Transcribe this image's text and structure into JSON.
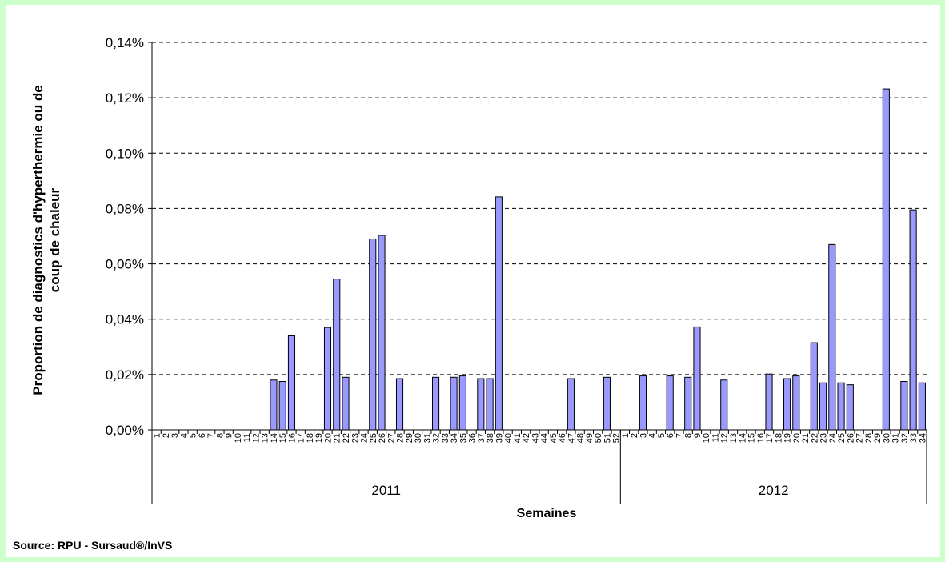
{
  "source": "Source: RPU - Sursaud®/InVS",
  "chart_data": {
    "type": "bar",
    "ylabel": "Proportion de diagnostics d'hyperthermie ou de coup de chaleur",
    "xlabel": "Semaines",
    "ylim": [
      0,
      0.14
    ],
    "yticks": [
      "0,00%",
      "0,02%",
      "0,04%",
      "0,06%",
      "0,08%",
      "0,10%",
      "0,12%",
      "0,14%"
    ],
    "grid": "horizontal-dashed",
    "colors": {
      "bar_fill": "#9999ff",
      "bar_stroke": "#000000",
      "grid": "#000000",
      "background": "#ffffff"
    },
    "groups": [
      {
        "year": "2011",
        "weeks": [
          "1",
          "2",
          "3",
          "4",
          "5",
          "6",
          "7",
          "8",
          "9",
          "10",
          "11",
          "12",
          "13",
          "14",
          "15",
          "16",
          "17",
          "18",
          "19",
          "20",
          "21",
          "22",
          "23",
          "24",
          "25",
          "26",
          "27",
          "28",
          "29",
          "30",
          "31",
          "32",
          "33",
          "34",
          "35",
          "36",
          "37",
          "38",
          "39",
          "40",
          "41",
          "42",
          "43",
          "44",
          "45",
          "46",
          "47",
          "48",
          "49",
          "50",
          "51",
          "52"
        ],
        "values": [
          0,
          0,
          0,
          0,
          0,
          0,
          0,
          0,
          0,
          0,
          0,
          0,
          0,
          0.018,
          0.0175,
          0.034,
          0,
          0,
          0,
          0.037,
          0.0545,
          0.019,
          0,
          0,
          0.069,
          0.0703,
          0,
          0.0185,
          0,
          0,
          0,
          0.019,
          0,
          0.019,
          0.0195,
          0,
          0.0185,
          0.0185,
          0.0842,
          0,
          0,
          0,
          0,
          0,
          0,
          0,
          0.0185,
          0,
          0,
          0,
          0.019,
          0
        ]
      },
      {
        "year": "2012",
        "weeks": [
          "1",
          "2",
          "3",
          "4",
          "5",
          "6",
          "7",
          "8",
          "9",
          "10",
          "11",
          "12",
          "13",
          "14",
          "15",
          "16",
          "17",
          "18",
          "19",
          "20",
          "21",
          "22",
          "23",
          "24",
          "25",
          "26",
          "27",
          "28",
          "29",
          "30",
          "31",
          "32",
          "33",
          "34"
        ],
        "values": [
          0,
          0,
          0.0195,
          0,
          0,
          0.0195,
          0,
          0.019,
          0.0372,
          0,
          0,
          0.018,
          0,
          0,
          0,
          0,
          0.0202,
          0,
          0.0185,
          0.0195,
          0,
          0.0315,
          0.017,
          0.067,
          0.017,
          0.0163,
          0,
          0,
          0,
          0.1232,
          0,
          0.0175,
          0.0795,
          0.017
        ]
      }
    ]
  }
}
